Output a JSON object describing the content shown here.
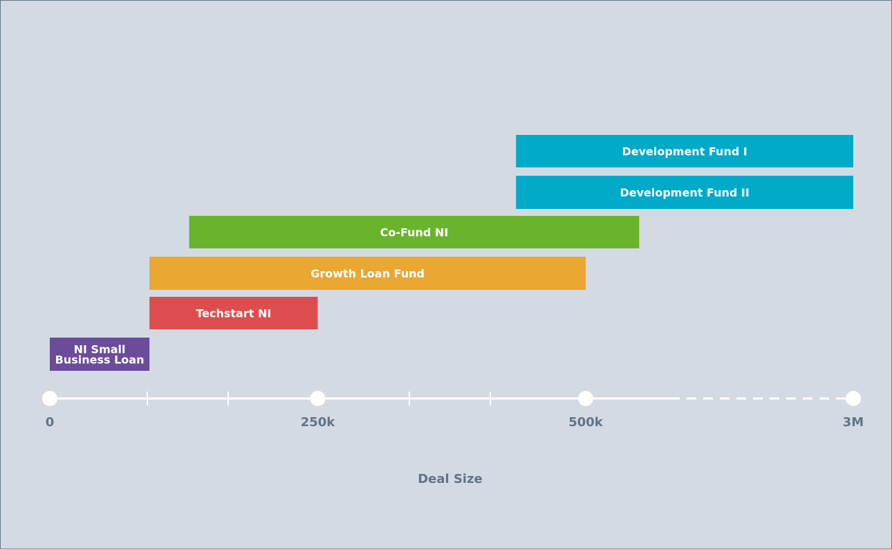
{
  "chart_data": {
    "type": "bar",
    "orientation": "horizontal-range",
    "xlabel": "Deal Size",
    "x_ticks": [
      "0",
      "250k",
      "500k",
      "3M"
    ],
    "x_tick_values": [
      0,
      250000,
      500000,
      3000000
    ],
    "axis_note": "segment between 500k and 3M is dashed (compressed scale)",
    "grid": false,
    "series": [
      {
        "name": "Development Fund I",
        "start": 435000,
        "end": 3000000,
        "color": "#00aac8"
      },
      {
        "name": "Development Fund II",
        "start": 435000,
        "end": 3000000,
        "color": "#00aac8"
      },
      {
        "name": "Co-Fund NI",
        "start": 130000,
        "end": 1000000,
        "color": "#6ab42d"
      },
      {
        "name": "Growth Loan Fund",
        "start": 93000,
        "end": 500000,
        "color": "#eaa732"
      },
      {
        "name": "Techstart NI",
        "start": 93000,
        "end": 250000,
        "color": "#de4d4e"
      },
      {
        "name": "NI Small\nBusiness Loan",
        "start": 0,
        "end": 93000,
        "color": "#6b4c9a"
      }
    ]
  }
}
